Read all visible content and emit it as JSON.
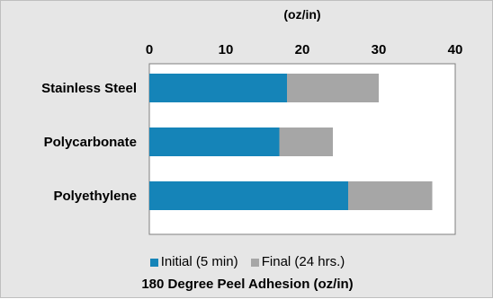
{
  "chart_data": {
    "type": "bar",
    "orientation": "horizontal",
    "stacked": true,
    "title": "180 Degree Peel Adhesion (oz/in)",
    "x_axis_unit": "(oz/in)",
    "x_axis_position": "top",
    "xlim": [
      0,
      40
    ],
    "x_ticks": [
      "0",
      "10",
      "20",
      "30",
      "40"
    ],
    "grid": false,
    "legend_position": "bottom",
    "categories": [
      "Stainless Steel",
      "Polycarbonate",
      "Polyethylene"
    ],
    "series": [
      {
        "name": "Initial (5 min)",
        "color": "#1584b8",
        "values": [
          18,
          17,
          26
        ]
      },
      {
        "name": "Final (24 hrs.)",
        "color": "#a6a6a6",
        "values": [
          12,
          7,
          11
        ]
      }
    ]
  }
}
